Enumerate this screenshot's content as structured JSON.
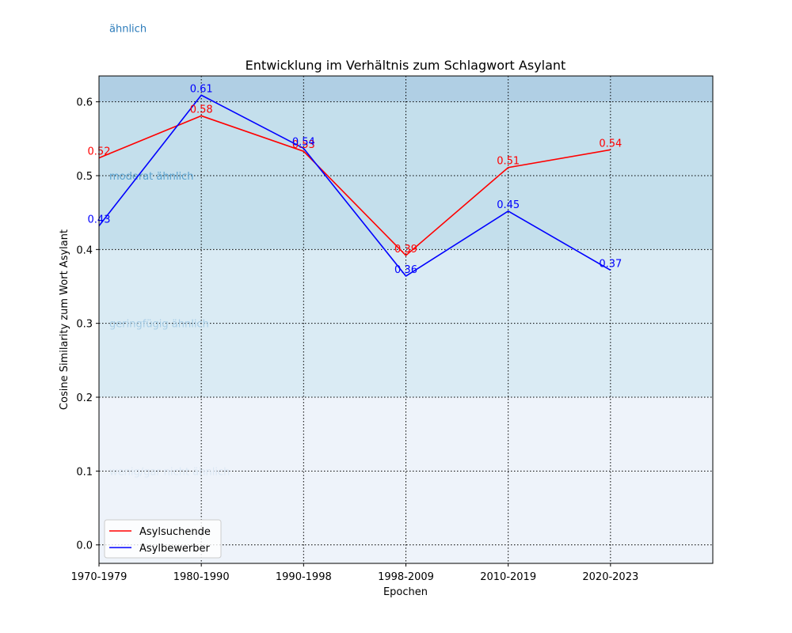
{
  "chart_data": {
    "type": "line",
    "title": "Entwicklung im Verhältnis zum Schlagwort Asylant",
    "xlabel": "Epochen",
    "ylabel": "Cosine Similarity zum Wort Asylant",
    "categories": [
      "1970-1979",
      "1980-1990",
      "1990-1998",
      "1998-2009",
      "2010-2019",
      "2020-2023"
    ],
    "x_range": [
      0,
      6
    ],
    "ylim": [
      -0.025,
      0.635
    ],
    "yticks": [
      "0.0",
      "0.1",
      "0.2",
      "0.3",
      "0.4",
      "0.5",
      "0.6"
    ],
    "grid": true,
    "legend_position": "lower-left",
    "series": [
      {
        "name": "Asylsuchende",
        "color": "#ff0000",
        "values": [
          0.524,
          0.581,
          0.533,
          0.392,
          0.511,
          0.535
        ],
        "labels": [
          "0.52",
          "0.58",
          "0.53",
          "0.39",
          "0.51",
          "0.54"
        ]
      },
      {
        "name": "Asylbewerber",
        "color": "#0000ff",
        "values": [
          0.432,
          0.609,
          0.537,
          0.364,
          0.452,
          0.372
        ],
        "labels": [
          "0.43",
          "0.61",
          "0.54",
          "0.36",
          "0.45",
          "0.37"
        ]
      }
    ],
    "bands": [
      {
        "from": -0.025,
        "to": 0.2,
        "color": "#eef3fa",
        "label": "wenig/gar nicht ähnlich",
        "label_y": 0.1,
        "label_color": "#dce8f4"
      },
      {
        "from": 0.2,
        "to": 0.4,
        "color": "#daebf4",
        "label": "geringfügig ähnlich",
        "label_y": 0.3,
        "label_color": "#a7cde6"
      },
      {
        "from": 0.4,
        "to": 0.6,
        "color": "#c4dfec",
        "label": "moderat ähnlich",
        "label_y": 0.5,
        "label_color": "#5ba3d0"
      },
      {
        "from": 0.6,
        "to": 0.635,
        "color": "#b0cfe4",
        "label": "ähnlich",
        "label_y": 0.7,
        "label_color": "#2b7bba"
      }
    ]
  }
}
